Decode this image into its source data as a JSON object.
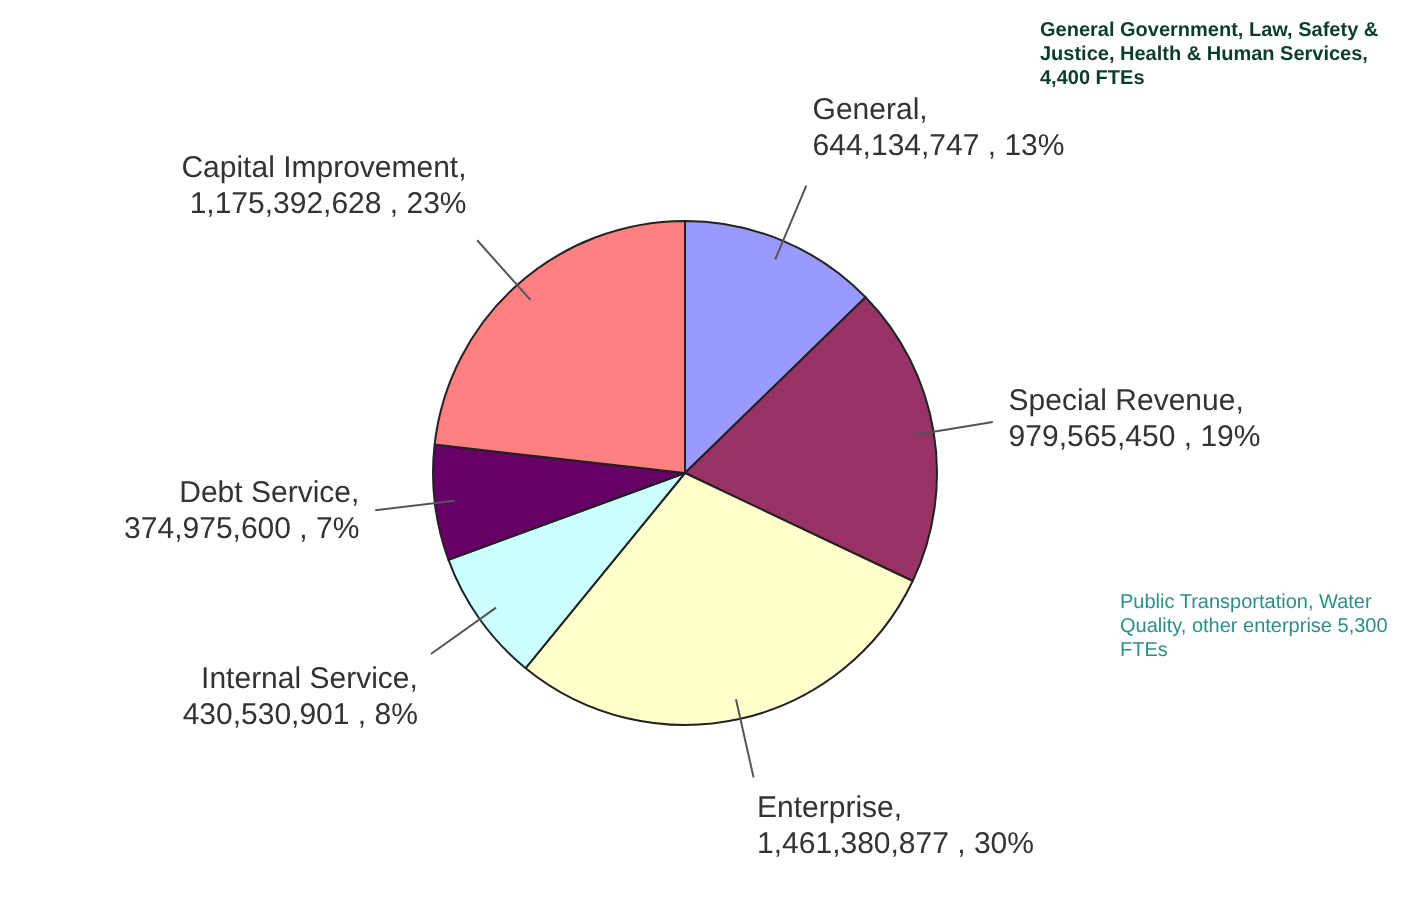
{
  "chart_data": {
    "type": "pie",
    "categories": [
      "General",
      "Special Revenue",
      "Enterprise",
      "Internal Service",
      "Debt Service",
      "Capital Improvement"
    ],
    "values": [
      644134747,
      979565450,
      1461380877,
      430530901,
      374975600,
      1175392628
    ],
    "value_labels": [
      ",\n644,134,747 , 13%",
      ",\n979,565,450 , 19%",
      ",\n1,461,380,877 , 30%",
      ",\n430,530,901 , 8%",
      ",\n374,975,600 , 7%",
      ",\n1,175,392,628 , 23%"
    ],
    "colors": [
      "#9999ff",
      "#993366",
      "#ffffcc",
      "#ccffff",
      "#660066",
      "#ff8080"
    ],
    "annotations": [
      "General Government, Law, Safety & Justice, Health & Human Services, 4,400 FTEs",
      "Public Transportation, Water Quality, other enterprise 5,300 FTEs"
    ],
    "legend": false
  }
}
